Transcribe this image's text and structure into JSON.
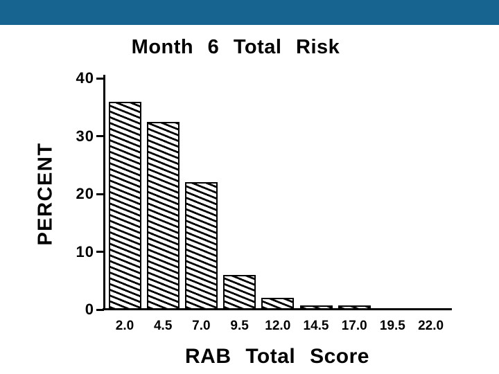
{
  "banner": {
    "color": "#16648F"
  },
  "chart_data": {
    "type": "bar",
    "title": "Month 6 Total Risk",
    "xlabel": "RAB Total Score",
    "ylabel": "PERCENT",
    "categories": [
      "2.0",
      "4.5",
      "7.0",
      "9.5",
      "12.0",
      "14.5",
      "17.0",
      "19.5",
      "22.0"
    ],
    "values": [
      36,
      32.5,
      22,
      6,
      2,
      0.5,
      0.5,
      0,
      0
    ],
    "yticks": [
      0,
      10,
      20,
      30,
      40
    ],
    "ylim": [
      0,
      40
    ],
    "grid": false,
    "legend": "none",
    "bar_style": "black diagonal hatch on white, black outline",
    "text_color": "#000000",
    "background_color": "#FFFFFF"
  }
}
